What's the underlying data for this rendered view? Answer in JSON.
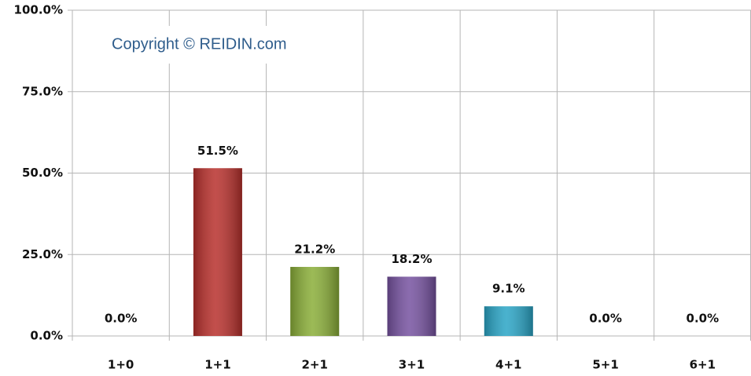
{
  "chart_data": {
    "type": "bar",
    "annotation": "Copyright © REIDIN.com",
    "categories": [
      "1+0",
      "1+1",
      "2+1",
      "3+1",
      "4+1",
      "5+1",
      "6+1"
    ],
    "values": [
      0,
      51.5,
      21.2,
      18.2,
      9.1,
      0,
      0
    ],
    "value_labels": [
      "0.0%",
      "51.5%",
      "21.2%",
      "18.2%",
      "9.1%",
      "0.0%",
      "0.0%"
    ],
    "colors": [
      null,
      "#b8302c",
      "#8aae38",
      "#7652a0",
      "#2aa5c6",
      null,
      null
    ],
    "ylim": [
      0,
      100
    ],
    "yticks": [
      {
        "value": 0,
        "label": "0.0%"
      },
      {
        "value": 25,
        "label": "25.0%"
      },
      {
        "value": 50,
        "label": "50.0%"
      },
      {
        "value": 75,
        "label": "75.0%"
      },
      {
        "value": 100,
        "label": "100.0%"
      }
    ],
    "grid": true
  }
}
